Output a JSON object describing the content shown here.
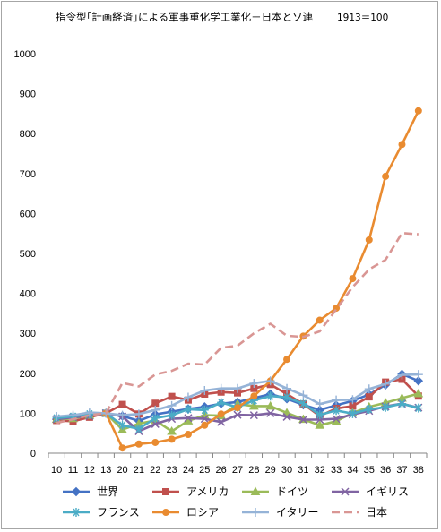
{
  "chart_data": {
    "type": "line",
    "title": "指令型｢計画経済｣による軍事重化学工業化－日本とソ連",
    "subtitle": "1913＝100",
    "xlabel": "",
    "ylabel": "",
    "categories": [
      "10",
      "11",
      "12",
      "13",
      "20",
      "21",
      "22",
      "23",
      "24",
      "25",
      "26",
      "27",
      "28",
      "29",
      "30",
      "31",
      "32",
      "33",
      "34",
      "35",
      "36",
      "37",
      "38"
    ],
    "ylim": [
      0,
      1000
    ],
    "yticks": [
      "0",
      "100",
      "200",
      "300",
      "400",
      "500",
      "600",
      "700",
      "800",
      "900",
      "1000"
    ],
    "grid": false,
    "legend_position": "bottom",
    "series": [
      {
        "name": "世界",
        "color": "#4472c4",
        "marker": "diamond",
        "dash": false,
        "values": [
          85,
          90,
          95,
          100,
          93,
          81,
          97,
          104,
          111,
          116,
          124,
          128,
          138,
          148,
          136,
          121,
          108,
          120,
          131,
          147,
          171,
          198,
          181
        ]
      },
      {
        "name": "アメリカ",
        "color": "#c0504d",
        "marker": "square",
        "dash": false,
        "values": [
          82,
          80,
          90,
          100,
          122,
          98,
          125,
          142,
          133,
          148,
          153,
          151,
          162,
          172,
          148,
          123,
          93,
          112,
          118,
          141,
          178,
          185,
          143
        ]
      },
      {
        "name": "ドイツ",
        "color": "#9bbb59",
        "marker": "triangle",
        "dash": false,
        "values": [
          85,
          87,
          95,
          100,
          59,
          74,
          82,
          55,
          81,
          95,
          94,
          123,
          118,
          118,
          101,
          85,
          70,
          80,
          101,
          116,
          126,
          138,
          149
        ]
      },
      {
        "name": "イギリス",
        "color": "#8064a2",
        "marker": "x",
        "dash": false,
        "values": [
          85,
          90,
          93,
          100,
          92,
          55,
          73,
          86,
          88,
          86,
          78,
          96,
          95,
          100,
          91,
          84,
          84,
          86,
          97,
          106,
          117,
          124,
          114
        ]
      },
      {
        "name": "フランス",
        "color": "#4bacc6",
        "marker": "star",
        "dash": false,
        "values": [
          88,
          92,
          98,
          100,
          70,
          61,
          88,
          95,
          110,
          108,
          127,
          115,
          132,
          143,
          140,
          124,
          96,
          107,
          99,
          110,
          115,
          124,
          113
        ]
      },
      {
        "name": "ロシア",
        "color": "#e98b30",
        "marker": "circle",
        "dash": false,
        "values": [
          null,
          null,
          null,
          100,
          13,
          23,
          27,
          35,
          47,
          70,
          98,
          114,
          143,
          181,
          235,
          293,
          333,
          363,
          437,
          534,
          693,
          773,
          857
        ]
      },
      {
        "name": "イタリー",
        "color": "#95b3d7",
        "marker": "plus",
        "dash": false,
        "values": [
          92,
          95,
          102,
          100,
          95,
          98,
          108,
          119,
          140,
          157,
          162,
          162,
          175,
          181,
          162,
          145,
          123,
          133,
          134,
          161,
          173,
          196,
          197
        ]
      },
      {
        "name": "日本",
        "color": "#d99694",
        "marker": "none",
        "dash": true,
        "values": [
          76,
          85,
          95,
          100,
          176,
          167,
          197,
          206,
          224,
          222,
          264,
          269,
          300,
          324,
          294,
          291,
          305,
          360,
          416,
          460,
          484,
          551,
          548
        ]
      }
    ]
  }
}
